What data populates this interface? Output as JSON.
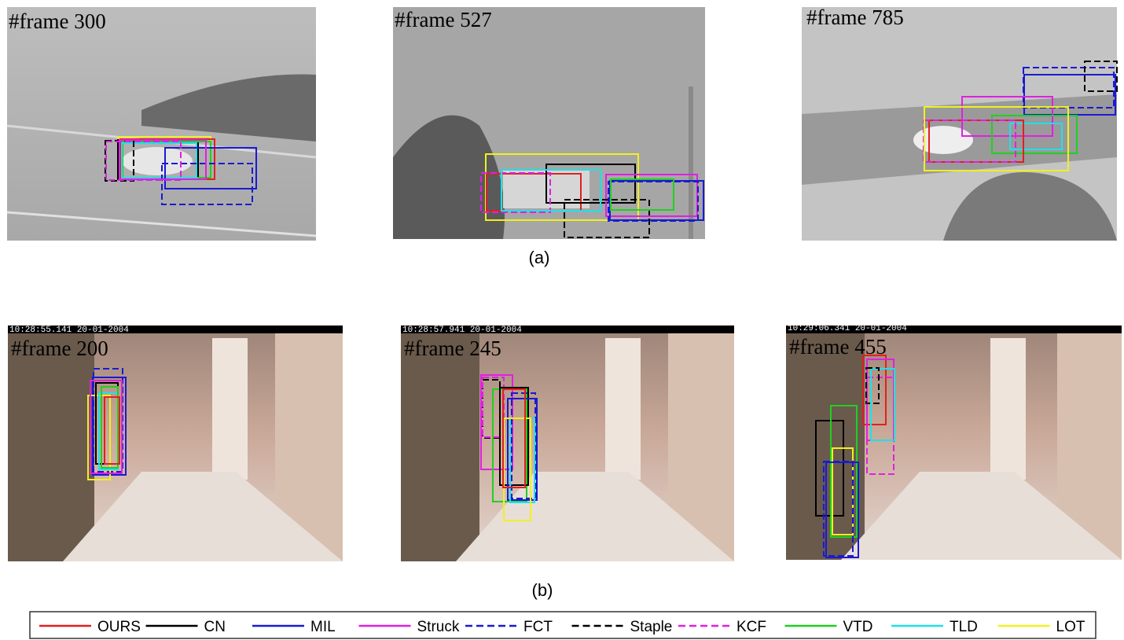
{
  "figure": {
    "panels": [
      {
        "label": "#frame 300"
      },
      {
        "label": "#frame 527"
      },
      {
        "label": "#frame 785"
      },
      {
        "label": "#frame 200",
        "timestamp": "10:28:55.141  20-01-2004"
      },
      {
        "label": "#frame 245",
        "timestamp": "10:28:57.941  20-01-2004"
      },
      {
        "label": "#frame 455",
        "timestamp": "10:29:06.341  20-01-2004"
      }
    ],
    "captions": [
      "(a)",
      "(b)"
    ],
    "legend": [
      {
        "name": "OURS",
        "color": "#e02020",
        "dashed": false
      },
      {
        "name": "CN",
        "color": "#000000",
        "dashed": false
      },
      {
        "name": "MIL",
        "color": "#1a1ad0",
        "dashed": false
      },
      {
        "name": "Struck",
        "color": "#e020e0",
        "dashed": false
      },
      {
        "name": "FCT",
        "color": "#1a1ad0",
        "dashed": true
      },
      {
        "name": "Staple",
        "color": "#000000",
        "dashed": true
      },
      {
        "name": "KCF",
        "color": "#e020e0",
        "dashed": true
      },
      {
        "name": "VTD",
        "color": "#20d020",
        "dashed": false
      },
      {
        "name": "TLD",
        "color": "#20e0e8",
        "dashed": false
      },
      {
        "name": "LOT",
        "color": "#f0f020",
        "dashed": false
      }
    ]
  }
}
